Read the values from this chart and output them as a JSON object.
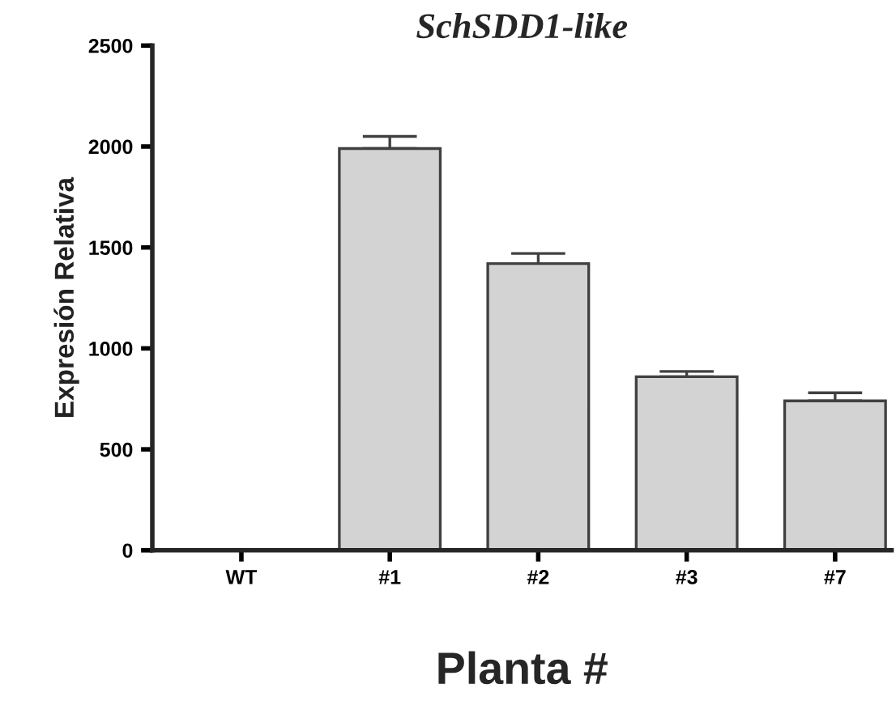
{
  "chart_data": {
    "type": "bar",
    "title": "SchSDD1-like",
    "xlabel": "Planta #",
    "ylabel": "Expresión Relativa",
    "categories": [
      "WT",
      "#1",
      "#2",
      "#3",
      "#7"
    ],
    "values": [
      null,
      1990,
      1420,
      860,
      740
    ],
    "errors": [
      null,
      [
        1990,
        2050
      ],
      [
        1420,
        1470
      ],
      [
        860,
        886
      ],
      [
        740,
        780
      ]
    ],
    "color": "#d3d3d3",
    "ylim": [
      0,
      2500
    ],
    "yticks": [
      0,
      500,
      1000,
      1500,
      2000,
      2500
    ],
    "grid": false,
    "legend": false
  }
}
